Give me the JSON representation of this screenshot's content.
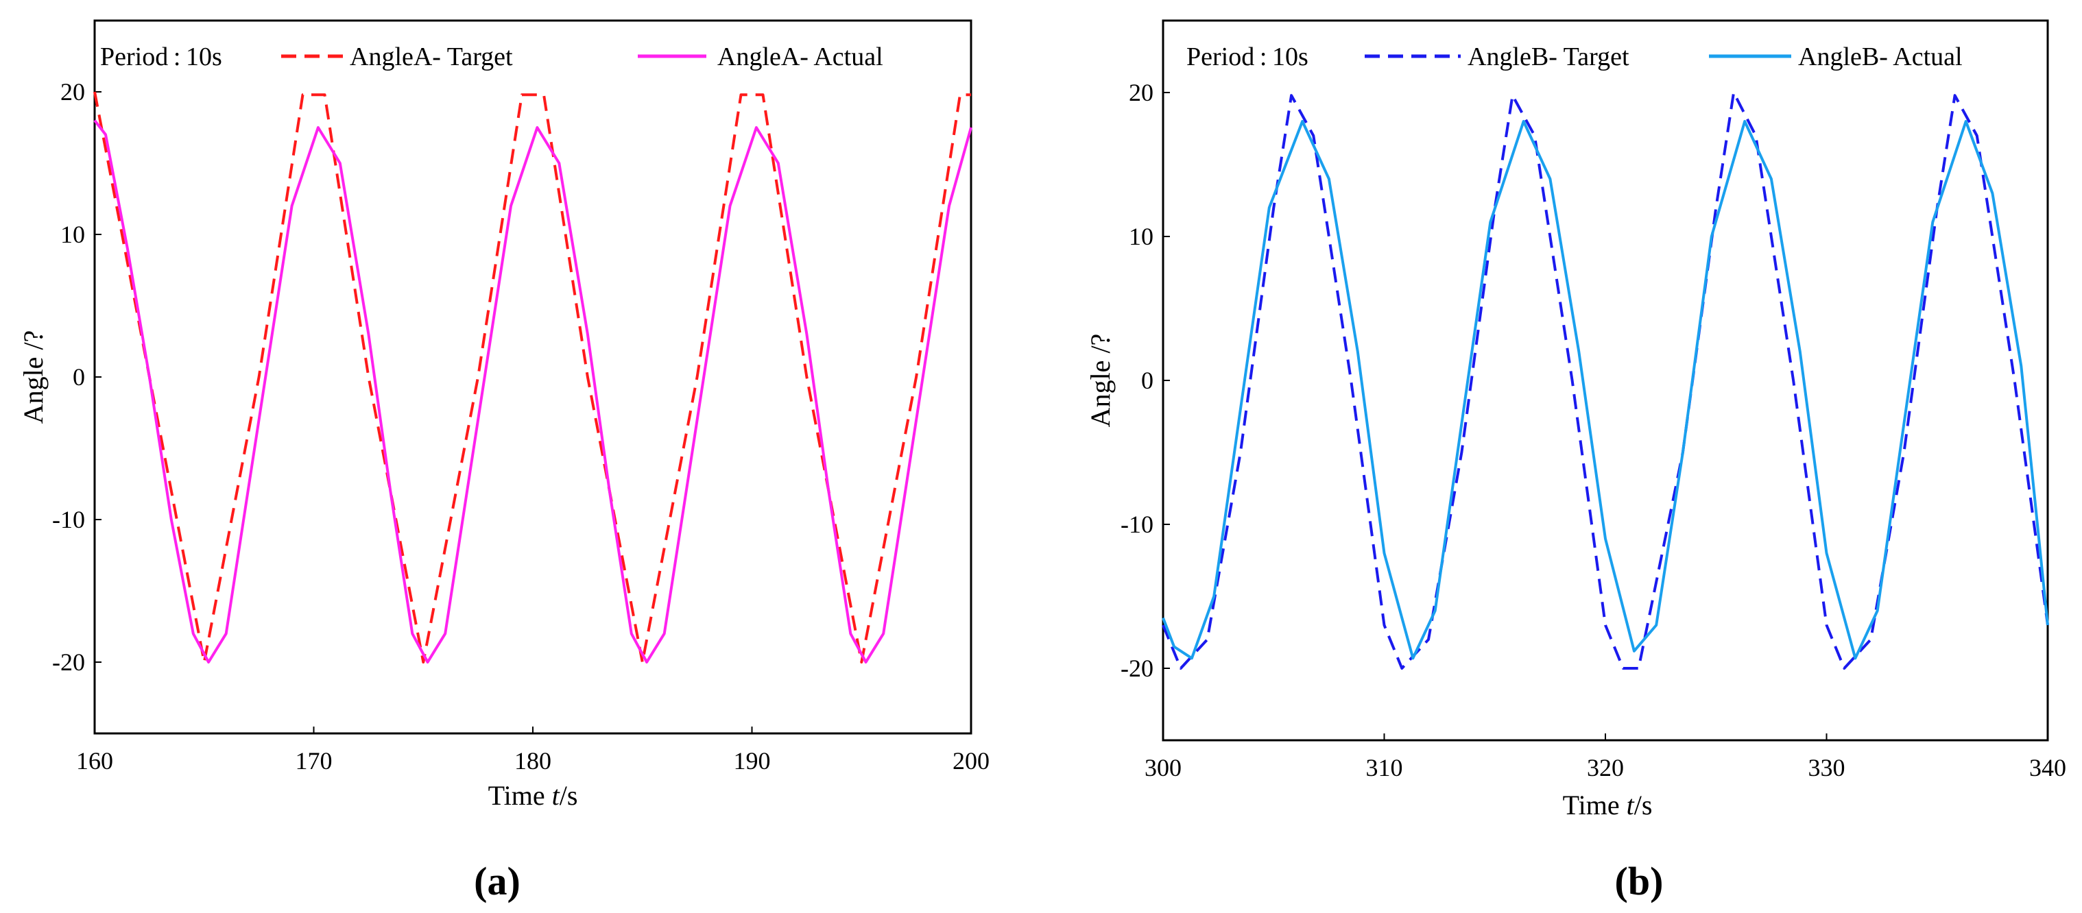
{
  "chart_data": [
    {
      "type": "line",
      "panel_label": "(a)",
      "annotation": "Period : 10s",
      "xlabel_prefix": "Time ",
      "xlabel_var": "t",
      "xlabel_suffix": "/s",
      "ylabel": "Angle /?",
      "xlim": [
        160,
        200
      ],
      "ylim": [
        -25,
        25
      ],
      "xticks": [
        "160",
        "170",
        "180",
        "190",
        "200"
      ],
      "xtick_values": [
        160,
        170,
        180,
        190,
        200
      ],
      "yticks": [
        "-20",
        "-10",
        "0",
        "10",
        "20"
      ],
      "ytick_values": [
        -20,
        -10,
        0,
        10,
        20
      ],
      "series": [
        {
          "name": "AngleA- Target",
          "style": "dashed",
          "color": "#ff1a1a",
          "x": [
            160,
            162.5,
            165,
            167.5,
            169.5,
            170.5,
            172.5,
            175,
            177.5,
            179.5,
            180.5,
            182.5,
            185,
            187.5,
            189.5,
            190.5,
            192.5,
            195,
            197.5,
            199.5,
            200
          ],
          "y": [
            20,
            0,
            -20,
            0,
            19.8,
            19.8,
            0,
            -20,
            0,
            19.8,
            19.8,
            0,
            -20,
            0,
            19.8,
            19.8,
            0,
            -20,
            0,
            19.8,
            19.8
          ]
        },
        {
          "name": "AngleA- Actual",
          "style": "solid",
          "color": "#ff22ee",
          "x": [
            160,
            160.5,
            161.5,
            162.5,
            163.5,
            164.5,
            165.2,
            166,
            167,
            168,
            169,
            170.2,
            171.2,
            172.5,
            173.5,
            174.5,
            175.2,
            176,
            177,
            178,
            179,
            180.2,
            181.2,
            182.5,
            183.5,
            184.5,
            185.2,
            186,
            187,
            188,
            189,
            190.2,
            191.2,
            192.5,
            193.5,
            194.5,
            195.2,
            196,
            197,
            198,
            199,
            200
          ],
          "y": [
            18,
            17,
            9,
            0,
            -10,
            -18,
            -20,
            -18,
            -8,
            2,
            12,
            17.5,
            15,
            3,
            -8,
            -18,
            -20,
            -18,
            -8,
            2,
            12,
            17.5,
            15,
            3,
            -8,
            -18,
            -20,
            -18,
            -8,
            2,
            12,
            17.5,
            15,
            3,
            -8,
            -18,
            -20,
            -18,
            -8,
            2,
            12,
            17.5
          ]
        }
      ]
    },
    {
      "type": "line",
      "panel_label": "(b)",
      "annotation": "Period : 10s",
      "xlabel_prefix": "Time ",
      "xlabel_var": "t",
      "xlabel_suffix": "/s",
      "ylabel": "Angle /?",
      "xlim": [
        300,
        340
      ],
      "ylim": [
        -25,
        25
      ],
      "xticks": [
        "300",
        "310",
        "320",
        "330",
        "340"
      ],
      "xtick_values": [
        300,
        310,
        320,
        330,
        340
      ],
      "yticks": [
        "-20",
        "-10",
        "0",
        "10",
        "20"
      ],
      "ytick_values": [
        -20,
        -10,
        0,
        10,
        20
      ],
      "series": [
        {
          "name": "AngleB- Target",
          "style": "dashed",
          "color": "#1a1aee",
          "x": [
            300,
            300.8,
            302,
            303.5,
            305,
            305.8,
            306.8,
            308.5,
            310,
            310.8,
            312,
            313.5,
            315,
            315.8,
            316.8,
            318.5,
            320,
            320.8,
            321.5,
            323.5,
            325,
            325.8,
            326.8,
            328.5,
            330,
            330.8,
            332,
            333.5,
            335,
            335.8,
            336.8,
            338.5,
            340
          ],
          "y": [
            -17,
            -20,
            -18,
            -5,
            12,
            19.8,
            17,
            0,
            -17,
            -20,
            -18,
            -5,
            12,
            19.8,
            17,
            0,
            -17,
            -20,
            -20,
            -5,
            12,
            20,
            17,
            0,
            -17,
            -20,
            -18,
            -5,
            12,
            19.8,
            17,
            0,
            -17
          ]
        },
        {
          "name": "AngleB- Actual",
          "style": "solid",
          "color": "#1aa0ee",
          "x": [
            300,
            300.5,
            301.3,
            302.3,
            303.5,
            304.8,
            306.3,
            307.5,
            308.8,
            310,
            311.3,
            312.3,
            313.5,
            314.8,
            316.3,
            317.5,
            318.8,
            320,
            321.3,
            322.3,
            323.5,
            324.8,
            326.3,
            327.5,
            328.8,
            330,
            331.3,
            332.3,
            333.5,
            334.8,
            336.3,
            337.5,
            338.8,
            340
          ],
          "y": [
            -16.5,
            -18.5,
            -19.3,
            -15,
            -2,
            12,
            18,
            14,
            2,
            -12,
            -19.3,
            -16,
            -3,
            11,
            18,
            14,
            2,
            -11,
            -18.8,
            -17,
            -5,
            10,
            18,
            14,
            2,
            -12,
            -19.3,
            -16,
            -3,
            11,
            18,
            13,
            1,
            -17
          ]
        }
      ]
    }
  ]
}
